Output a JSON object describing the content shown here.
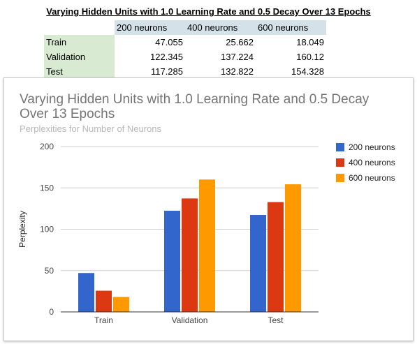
{
  "sheet": {
    "title": "Varying Hidden Units with 1.0 Learning Rate and 0.5 Decay Over 13 Epochs",
    "columns": [
      "200 neurons",
      "400 neurons",
      "600 neurons"
    ],
    "rows": [
      {
        "label": "Train",
        "values": [
          "47.055",
          "25.662",
          "18.049"
        ]
      },
      {
        "label": "Validation",
        "values": [
          "122.345",
          "137.224",
          "160.12"
        ]
      },
      {
        "label": "Test",
        "values": [
          "117.285",
          "132.822",
          "154.328"
        ]
      }
    ]
  },
  "chart_data": {
    "type": "bar",
    "title_lines": [
      "Varying Hidden Units with 1.0 Learning Rate and 0.5 Decay",
      "Over 13 Epochs"
    ],
    "subtitle": "Perplexities for Number of Neurons",
    "xlabel": "",
    "ylabel": "Perplexity",
    "ylim": [
      0,
      200
    ],
    "yticks": [
      0,
      50,
      100,
      150,
      200
    ],
    "categories": [
      "Train",
      "Validation",
      "Test"
    ],
    "series": [
      {
        "name": "200 neurons",
        "color": "#3366cc",
        "values": [
          47.055,
          122.345,
          117.285
        ]
      },
      {
        "name": "400 neurons",
        "color": "#dc3912",
        "values": [
          25.662,
          137.224,
          132.822
        ]
      },
      {
        "name": "600 neurons",
        "color": "#ff9900",
        "values": [
          18.049,
          160.12,
          154.328
        ]
      }
    ],
    "grid": true,
    "legend_position": "right"
  }
}
